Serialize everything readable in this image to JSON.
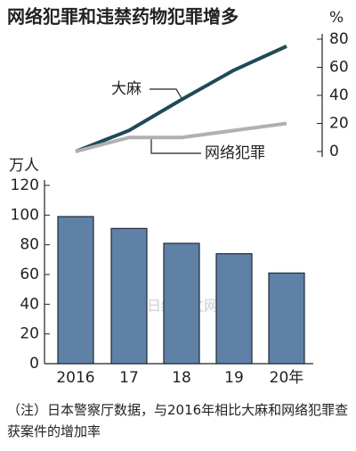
{
  "chart_data": [
    {
      "type": "line",
      "title": "网络犯罪和违禁药物犯罪增多",
      "y_unit": "%",
      "categories": [
        null,
        null,
        null,
        null,
        null
      ],
      "series": [
        {
          "name": "大麻",
          "color": "#1f4a57",
          "values": [
            0,
            15,
            37,
            58,
            75
          ]
        },
        {
          "name": "网络犯罪",
          "color": "#b0b0b0",
          "values": [
            0,
            10,
            10,
            15,
            20
          ]
        }
      ],
      "ylim": [
        0,
        80
      ],
      "yticks": [
        0,
        20,
        40,
        60,
        80
      ],
      "axis_side": "right"
    },
    {
      "type": "bar",
      "y_unit": "万人",
      "categories": [
        "2016",
        "17",
        "18",
        "19",
        "20年"
      ],
      "values": [
        99,
        91,
        81,
        74,
        61
      ],
      "color": "#5f81a6",
      "ylim": [
        0,
        120
      ],
      "yticks": [
        0,
        20,
        40,
        60,
        80,
        100,
        120
      ],
      "note": "（注）日本警察厅数据，与2016年相比大麻和网络犯罪查获案件的增加率"
    }
  ],
  "watermark": "日经中文网"
}
